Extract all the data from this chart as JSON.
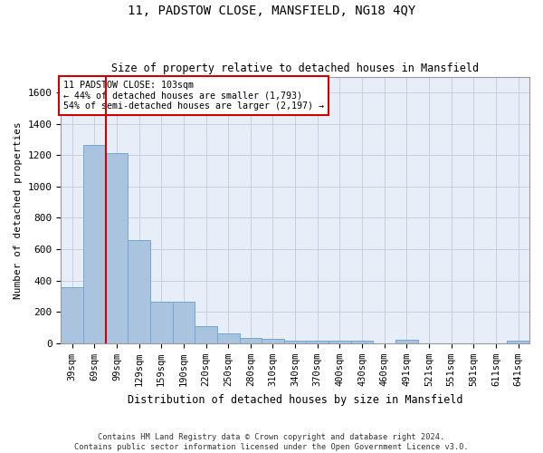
{
  "title": "11, PADSTOW CLOSE, MANSFIELD, NG18 4QY",
  "subtitle": "Size of property relative to detached houses in Mansfield",
  "xlabel": "Distribution of detached houses by size in Mansfield",
  "ylabel": "Number of detached properties",
  "footer1": "Contains HM Land Registry data © Crown copyright and database right 2024.",
  "footer2": "Contains public sector information licensed under the Open Government Licence v3.0.",
  "categories": [
    "39sqm",
    "69sqm",
    "99sqm",
    "129sqm",
    "159sqm",
    "190sqm",
    "220sqm",
    "250sqm",
    "280sqm",
    "310sqm",
    "340sqm",
    "370sqm",
    "400sqm",
    "430sqm",
    "460sqm",
    "491sqm",
    "521sqm",
    "551sqm",
    "581sqm",
    "611sqm",
    "641sqm"
  ],
  "values": [
    360,
    1265,
    1210,
    660,
    265,
    265,
    112,
    65,
    35,
    27,
    18,
    18,
    15,
    15,
    0,
    20,
    0,
    0,
    0,
    0,
    15
  ],
  "bar_color": "#aac4e0",
  "bar_edge_color": "#6fa8d4",
  "grid_color": "#c8d0e0",
  "bg_color": "#e8eef8",
  "annotation_box_color": "#cc0000",
  "annotation_text_line1": "11 PADSTOW CLOSE: 103sqm",
  "annotation_text_line2": "← 44% of detached houses are smaller (1,793)",
  "annotation_text_line3": "54% of semi-detached houses are larger (2,197) →",
  "vline_x_index": 2,
  "ylim": [
    0,
    1700
  ],
  "yticks": [
    0,
    200,
    400,
    600,
    800,
    1000,
    1200,
    1400,
    1600
  ]
}
